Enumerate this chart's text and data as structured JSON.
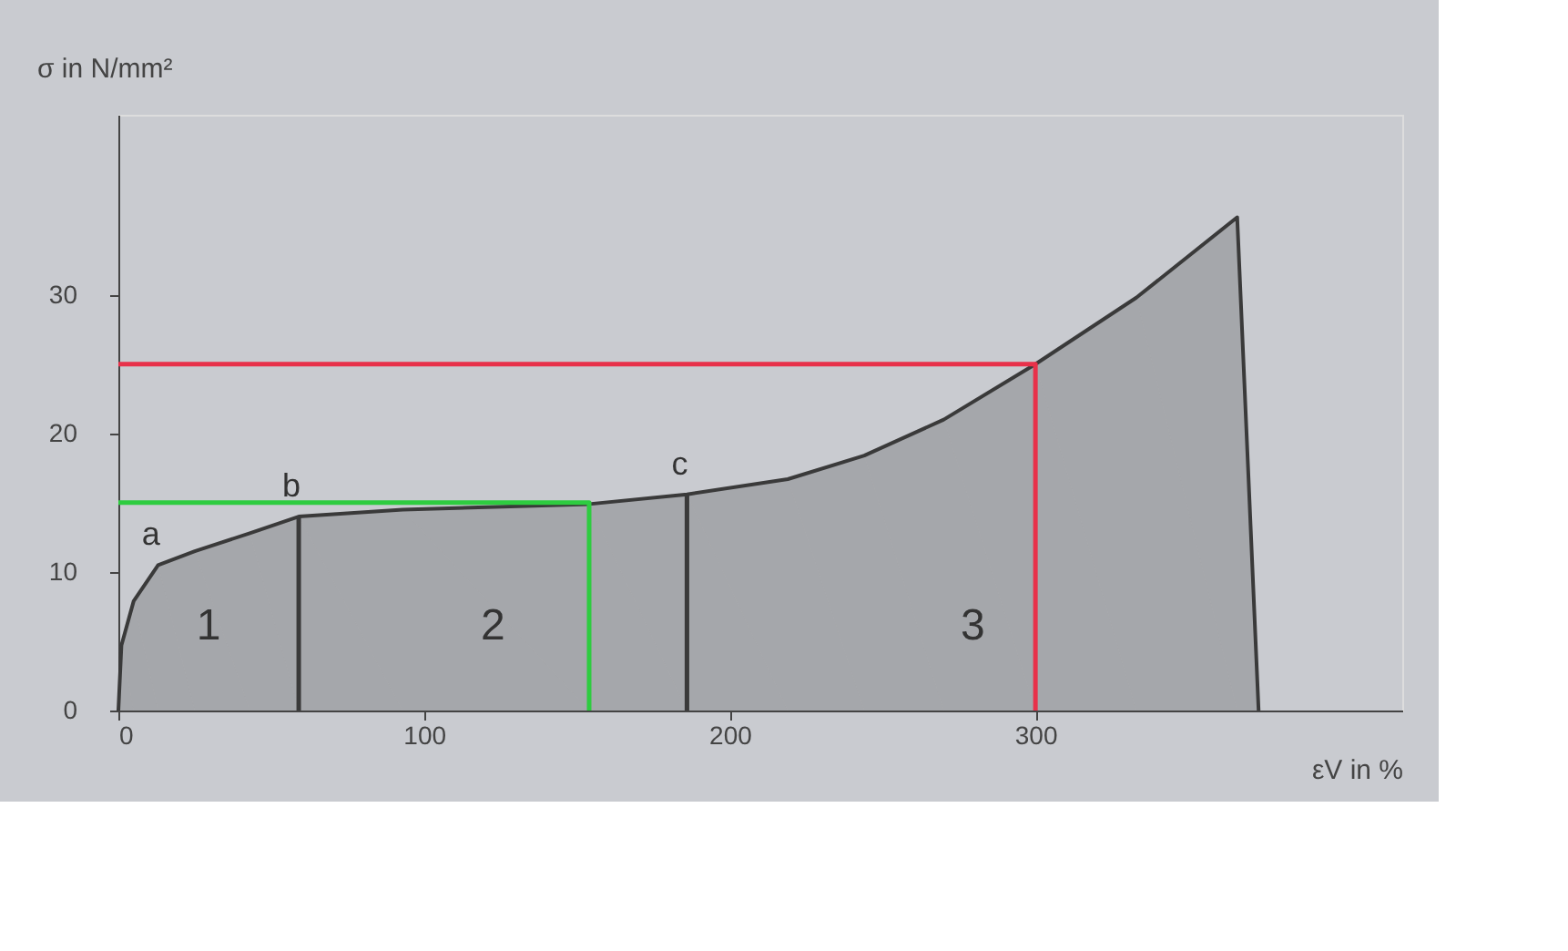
{
  "chart_data": {
    "type": "area",
    "xlabel": "εV in %",
    "ylabel": "σ in N/mm²",
    "xlim": [
      0,
      420
    ],
    "ylim": [
      0,
      43
    ],
    "xticks": [
      0,
      100,
      200,
      300
    ],
    "yticks": [
      0,
      10,
      20,
      30
    ],
    "grid": false,
    "series": [
      {
        "color": "#3a3a3a",
        "x": [
          0,
          1,
          5,
          13,
          25,
          43,
          59,
          93,
          154,
          186,
          219,
          244,
          270,
          300,
          333,
          366,
          373
        ],
        "values": [
          0,
          4.7,
          7.9,
          10.5,
          11.5,
          12.8,
          14.0,
          14.5,
          14.9,
          15.6,
          16.7,
          18.4,
          21,
          25,
          29.8,
          35.6,
          0
        ]
      },
      {
        "type": "line",
        "color": "#3a3a3a",
        "x": [
          59,
          59
        ],
        "values": [
          0,
          14.0
        ]
      },
      {
        "type": "line",
        "color": "#3a3a3a",
        "x": [
          186,
          186
        ],
        "values": [
          0,
          15.6
        ]
      },
      {
        "type": "line",
        "color": "#2ecc40",
        "x": [
          0,
          154,
          154
        ],
        "values": [
          15,
          15,
          0
        ]
      },
      {
        "type": "line",
        "color": "#e8314a",
        "x": [
          0,
          300,
          300
        ],
        "values": [
          25,
          25,
          0
        ]
      }
    ],
    "annotations": [
      {
        "text": "a",
        "x": 13,
        "y": 10.5
      },
      {
        "text": "b",
        "x": 59,
        "y": 14.0
      },
      {
        "text": "c",
        "x": 186,
        "y": 15.6
      },
      "1",
      "2",
      "3"
    ]
  }
}
